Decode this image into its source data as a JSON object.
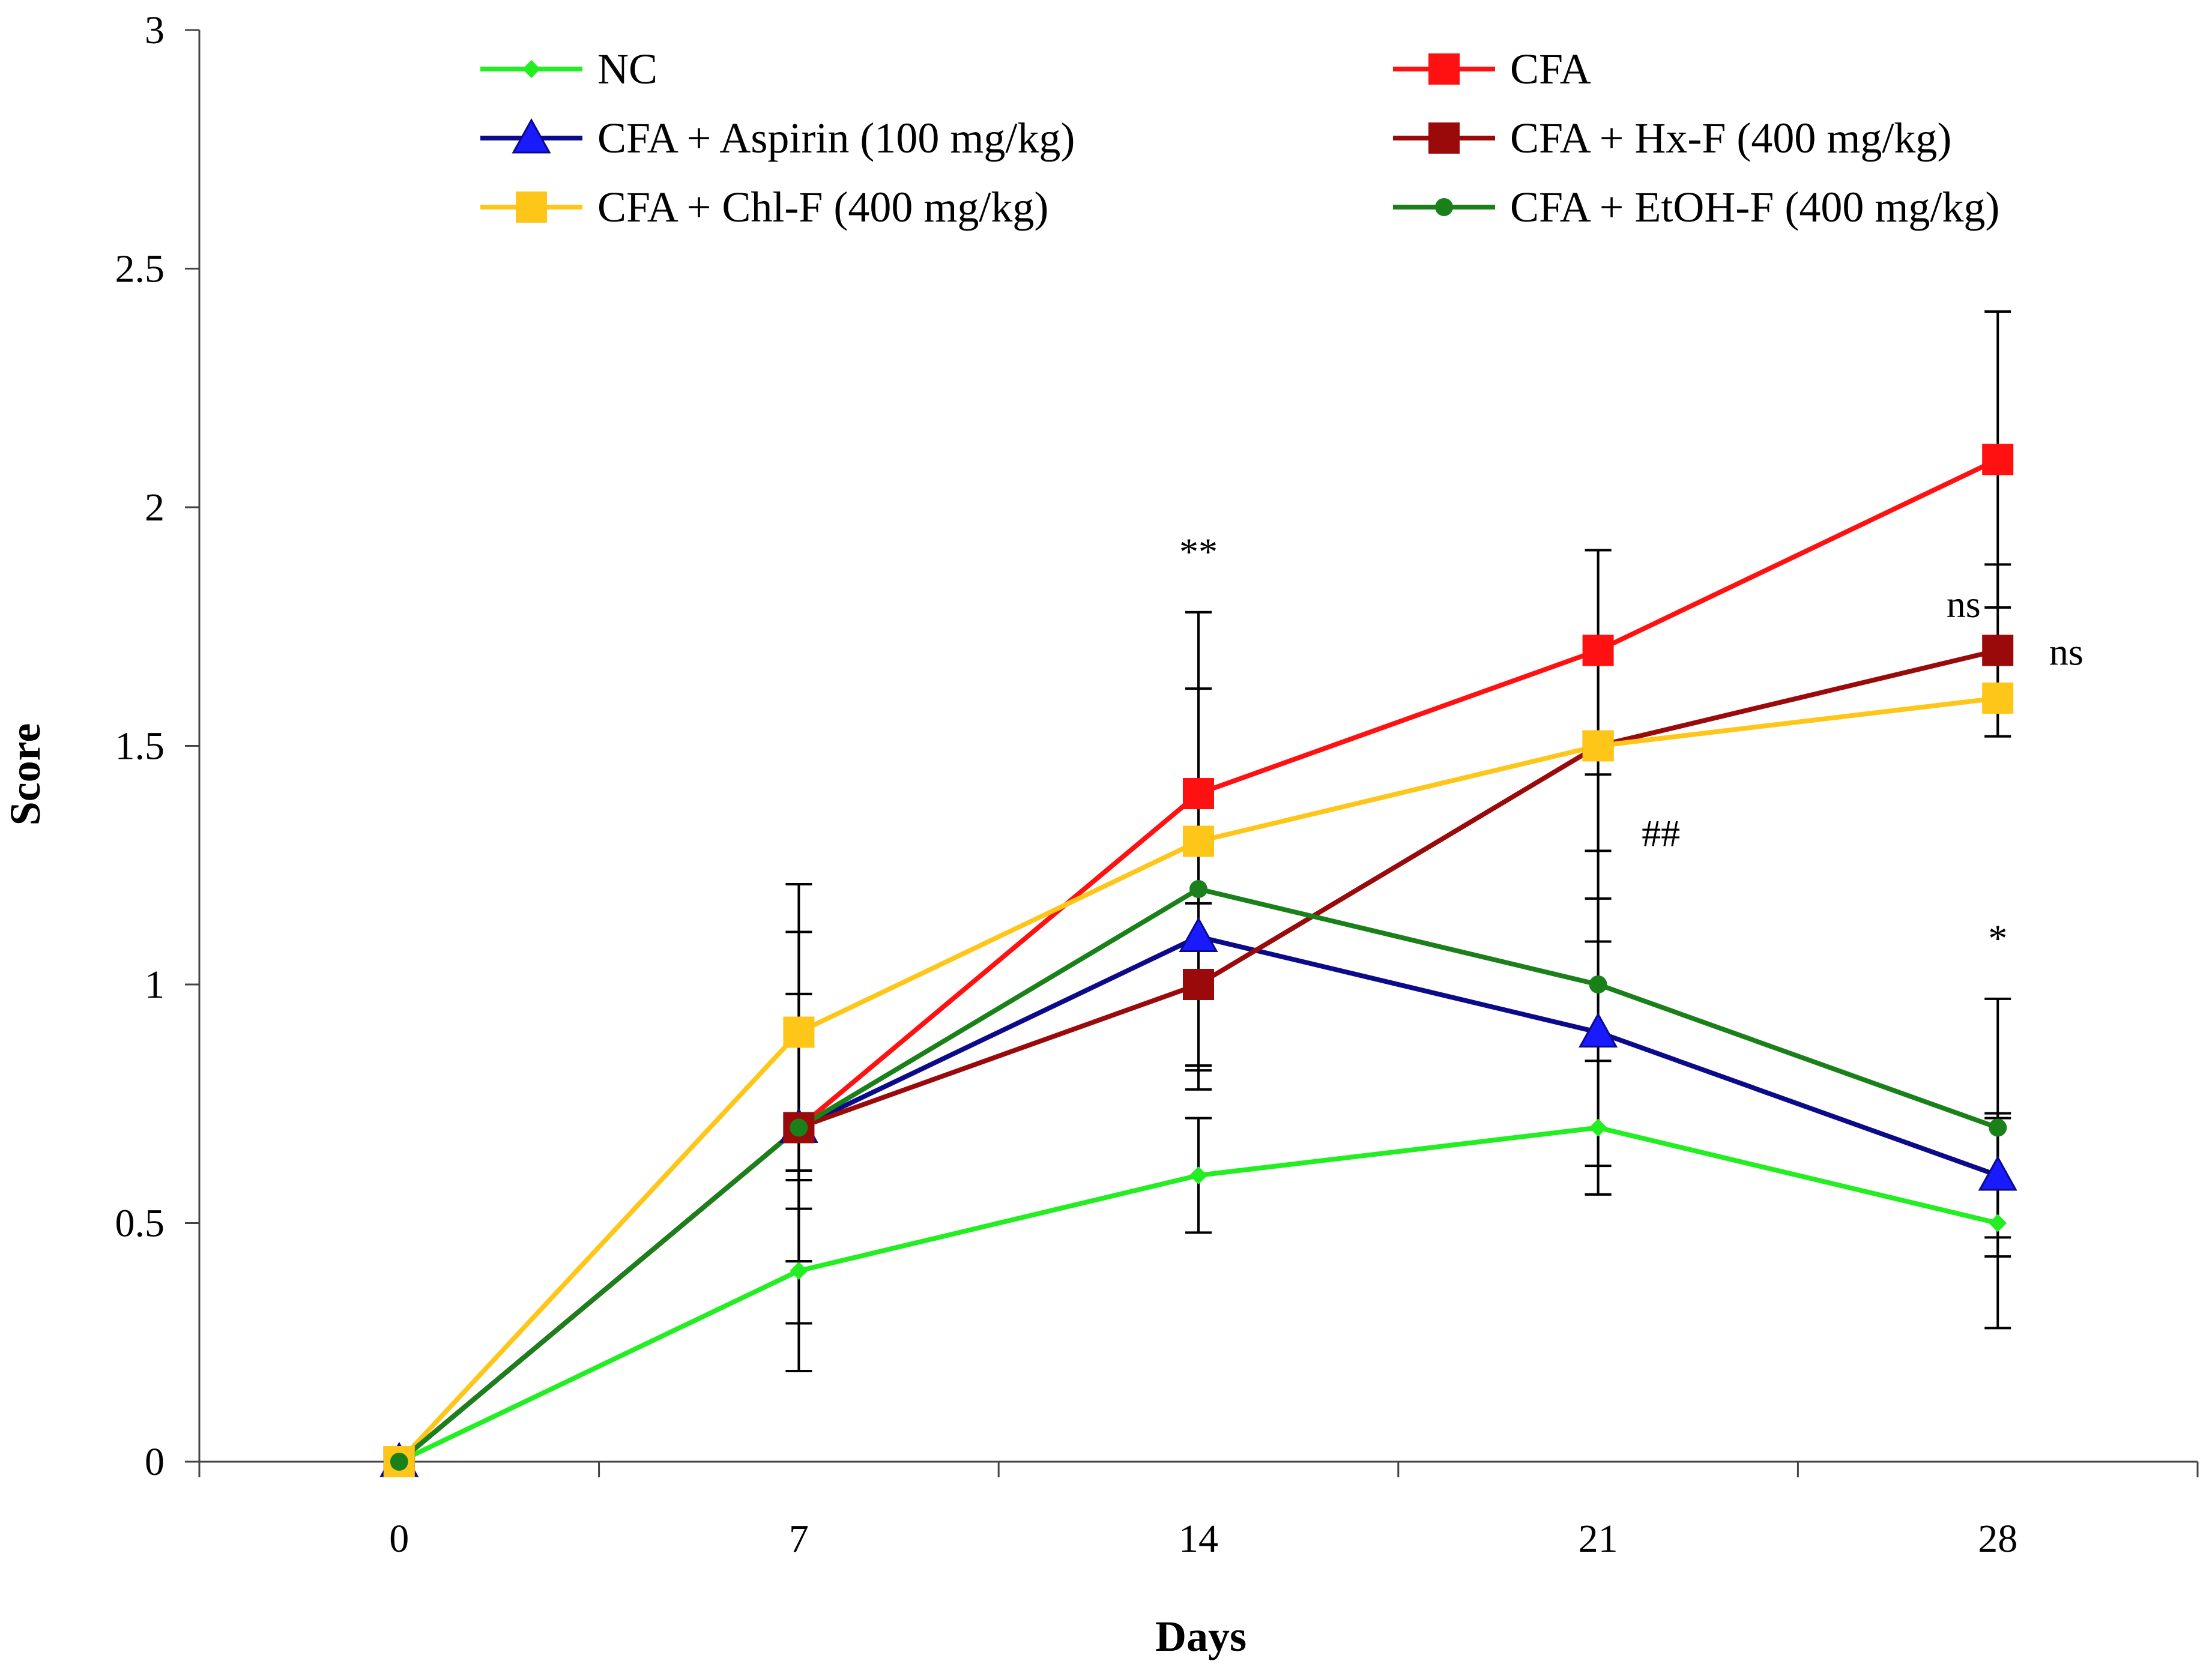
{
  "chart_data": {
    "type": "line",
    "title": "",
    "xlabel": "Days",
    "ylabel": "Score",
    "x": [
      0,
      7,
      14,
      21,
      28
    ],
    "x_tick_labels": [
      "0",
      "7",
      "14",
      "21",
      "28"
    ],
    "ylim": [
      0,
      3
    ],
    "y_ticks": [
      0,
      0.5,
      1,
      1.5,
      2,
      2.5,
      3
    ],
    "y_tick_labels": [
      "0",
      "0.5",
      "1",
      "1.5",
      "2",
      "2.5",
      "3"
    ],
    "grid": false,
    "legend_position": "top",
    "series": [
      {
        "name": "NC",
        "color": "#22ee22",
        "marker": "diamond",
        "values": [
          0,
          0.4,
          0.6,
          0.7,
          0.5
        ],
        "errors": [
          0,
          0.21,
          0.12,
          0.14,
          0.22
        ]
      },
      {
        "name": "CFA",
        "color": "#ff1111",
        "marker": "square",
        "values": [
          0,
          0.7,
          1.4,
          1.7,
          2.1
        ],
        "errors": [
          0,
          0.28,
          0.38,
          0.21,
          0.31
        ]
      },
      {
        "name": "CFA + Aspirin (100 mg/kg)",
        "color": "#0a0a8a",
        "marker": "triangle",
        "marker_color": "#1a1aff",
        "values": [
          0,
          0.7,
          1.1,
          0.9,
          0.6
        ],
        "errors": [
          0,
          0.28,
          0.27,
          0.28,
          0.13
        ]
      },
      {
        "name": "CFA + Hx-F (400 mg/kg)",
        "color": "#9a0a0a",
        "marker": "square",
        "values": [
          0,
          0.7,
          1.0,
          1.5,
          1.7
        ],
        "errors": [
          0,
          0.17,
          0.17,
          0.22,
          0.18
        ]
      },
      {
        "name": "CFA + Chl-F (400 mg/kg)",
        "color": "#ffc61a",
        "marker": "square",
        "values": [
          0,
          0.9,
          1.3,
          1.5,
          1.6
        ],
        "errors": [
          0,
          0.31,
          0.48,
          0.41,
          0.08
        ]
      },
      {
        "name": "CFA + EtOH-F (400 mg/kg)",
        "color": "#1a801a",
        "marker": "circle",
        "values": [
          0,
          0.7,
          1.2,
          1.0,
          0.7
        ],
        "errors": [
          0,
          0.41,
          0.42,
          0.44,
          0.27
        ]
      }
    ],
    "annotations": [
      {
        "text": "**",
        "x": 14,
        "y": 1.88
      },
      {
        "text": "ns",
        "x": 27.4,
        "y": 1.77
      },
      {
        "text": "ns",
        "x": 29.2,
        "y": 1.67
      },
      {
        "text": "##",
        "x": 22.1,
        "y": 1.29
      },
      {
        "text": "*",
        "x": 28,
        "y": 1.07
      }
    ]
  }
}
